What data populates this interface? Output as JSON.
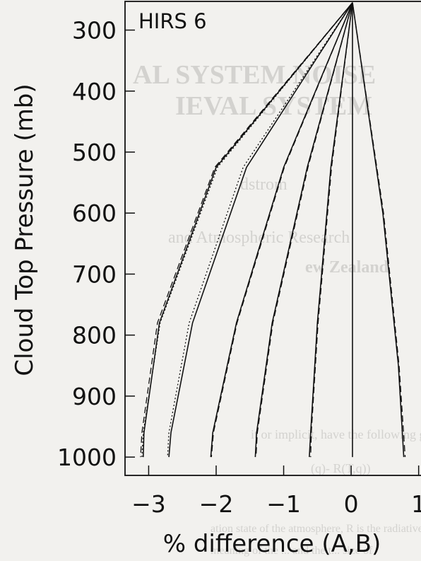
{
  "bleed_through": {
    "lines": [
      "AL SYSTEM NOISE",
      "IEVAL SYSTEM",
      "dstrom",
      "and Atmospheric Research",
      "ew Zealand",
      "it or implicit, have the following general form:",
      "(q)- R(T,q))",
      "ation state of the atmosphere, R is the radiative",
      "meaning of the ... and the t... size of"
    ]
  },
  "chart_data": {
    "type": "line",
    "title": "HIRS 6",
    "xlabel": "% difference (A,B)",
    "ylabel": "Cloud Top Pressure (mb)",
    "xlim": [
      -3.35,
      1.15
    ],
    "ylim": [
      1030,
      253
    ],
    "x_ticks": [
      -3,
      -2,
      -1,
      0,
      1
    ],
    "x_tick_labels": [
      "−3",
      "−2",
      "−1",
      "0",
      "1"
    ],
    "y_ticks": [
      300,
      400,
      500,
      600,
      700,
      800,
      900,
      1000
    ],
    "y_tick_labels": [
      "300",
      "400",
      "500",
      "600",
      "700",
      "800",
      "900",
      "1000"
    ],
    "colors": {
      "line": "#111111",
      "text": "#111111"
    },
    "series": [
      {
        "style": "solid",
        "points": [
          [
            0.02,
            255
          ],
          [
            -0.65,
            525
          ],
          [
            -1.17,
            780
          ],
          [
            -1.4,
            960
          ],
          [
            -1.42,
            1000
          ]
        ]
      },
      {
        "style": "dashed",
        "points": [
          [
            0.02,
            255
          ],
          [
            -0.64,
            525
          ],
          [
            -1.16,
            780
          ],
          [
            -1.39,
            960
          ],
          [
            -1.41,
            1000
          ]
        ]
      },
      {
        "style": "solid",
        "points": [
          [
            0.02,
            255
          ],
          [
            -1.0,
            525
          ],
          [
            -1.7,
            780
          ],
          [
            -2.05,
            960
          ],
          [
            -2.08,
            1000
          ]
        ]
      },
      {
        "style": "dashed",
        "points": [
          [
            0.02,
            255
          ],
          [
            -0.99,
            525
          ],
          [
            -1.69,
            780
          ],
          [
            -2.04,
            960
          ],
          [
            -2.07,
            1000
          ]
        ]
      },
      {
        "style": "solid",
        "points": [
          [
            0.02,
            255
          ],
          [
            -1.55,
            525
          ],
          [
            -2.35,
            780
          ],
          [
            -2.67,
            960
          ],
          [
            -2.7,
            1000
          ]
        ]
      },
      {
        "style": "dotted",
        "points": [
          [
            0.02,
            255
          ],
          [
            -1.6,
            525
          ],
          [
            -2.4,
            780
          ],
          [
            -2.7,
            960
          ],
          [
            -2.72,
            1000
          ]
        ]
      },
      {
        "style": "solid",
        "points": [
          [
            0.02,
            255
          ],
          [
            -2.0,
            525
          ],
          [
            -2.84,
            780
          ],
          [
            -3.07,
            960
          ],
          [
            -3.08,
            1000
          ]
        ]
      },
      {
        "style": "dotted",
        "points": [
          [
            0.02,
            255
          ],
          [
            -1.98,
            525
          ],
          [
            -2.83,
            780
          ],
          [
            -3.08,
            960
          ],
          [
            -3.1,
            1000
          ]
        ]
      },
      {
        "style": "dashed",
        "points": [
          [
            0.02,
            255
          ],
          [
            -2.02,
            525
          ],
          [
            -2.87,
            780
          ],
          [
            -3.1,
            960
          ],
          [
            -3.12,
            1000
          ]
        ]
      },
      {
        "style": "solid",
        "points": [
          [
            0.02,
            255
          ],
          [
            -0.3,
            525
          ],
          [
            -0.5,
            780
          ],
          [
            -0.6,
            960
          ],
          [
            -0.62,
            1000
          ]
        ]
      },
      {
        "style": "dashed",
        "points": [
          [
            0.02,
            255
          ],
          [
            -0.29,
            525
          ],
          [
            -0.49,
            780
          ],
          [
            -0.59,
            960
          ],
          [
            -0.6,
            1000
          ]
        ]
      },
      {
        "style": "solid",
        "points": [
          [
            0.02,
            255
          ],
          [
            0.02,
            1000
          ]
        ]
      },
      {
        "style": "solid",
        "points": [
          [
            0.02,
            255
          ],
          [
            0.47,
            600
          ],
          [
            0.7,
            850
          ],
          [
            0.78,
            1000
          ]
        ]
      },
      {
        "style": "dashed",
        "points": [
          [
            0.02,
            255
          ],
          [
            0.48,
            600
          ],
          [
            0.71,
            850
          ],
          [
            0.8,
            1000
          ]
        ]
      }
    ]
  }
}
